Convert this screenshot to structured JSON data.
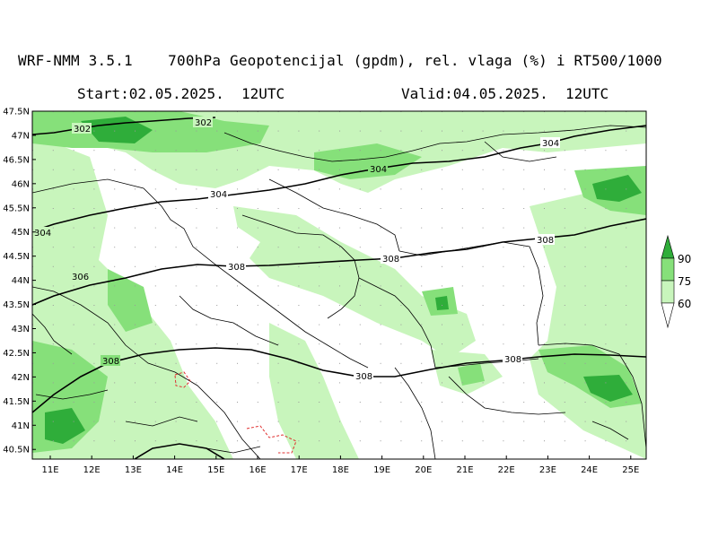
{
  "header": {
    "model": "WRF-NMM 3.5.1",
    "product": "700hPa Geopotencijal (gpdm), rel. vlaga (%) i RT500/1000",
    "start": "Start:02.05.2025.  12UTC",
    "valid": "Valid:04.05.2025.  12UTC"
  },
  "axes": {
    "lat_labels": [
      "47.5N",
      "47N",
      "46.5N",
      "46N",
      "45.5N",
      "45N",
      "44.5N",
      "44N",
      "43.5N",
      "43N",
      "42.5N",
      "42N",
      "41.5N",
      "41N",
      "40.5N"
    ],
    "lon_labels": [
      "11E",
      "12E",
      "13E",
      "14E",
      "15E",
      "16E",
      "17E",
      "18E",
      "19E",
      "20E",
      "21E",
      "22E",
      "23E",
      "24E",
      "25E"
    ]
  },
  "legend": {
    "levels": [
      "90",
      "75",
      "60"
    ],
    "colors": {
      "c60": "#c8f5bc",
      "c75": "#86e07a",
      "c90": "#2fad3a"
    }
  },
  "contours": {
    "labels": [
      "302",
      "302",
      "304",
      "304",
      "304",
      "304",
      "306",
      "308",
      "308",
      "308",
      "308",
      "308"
    ]
  }
}
